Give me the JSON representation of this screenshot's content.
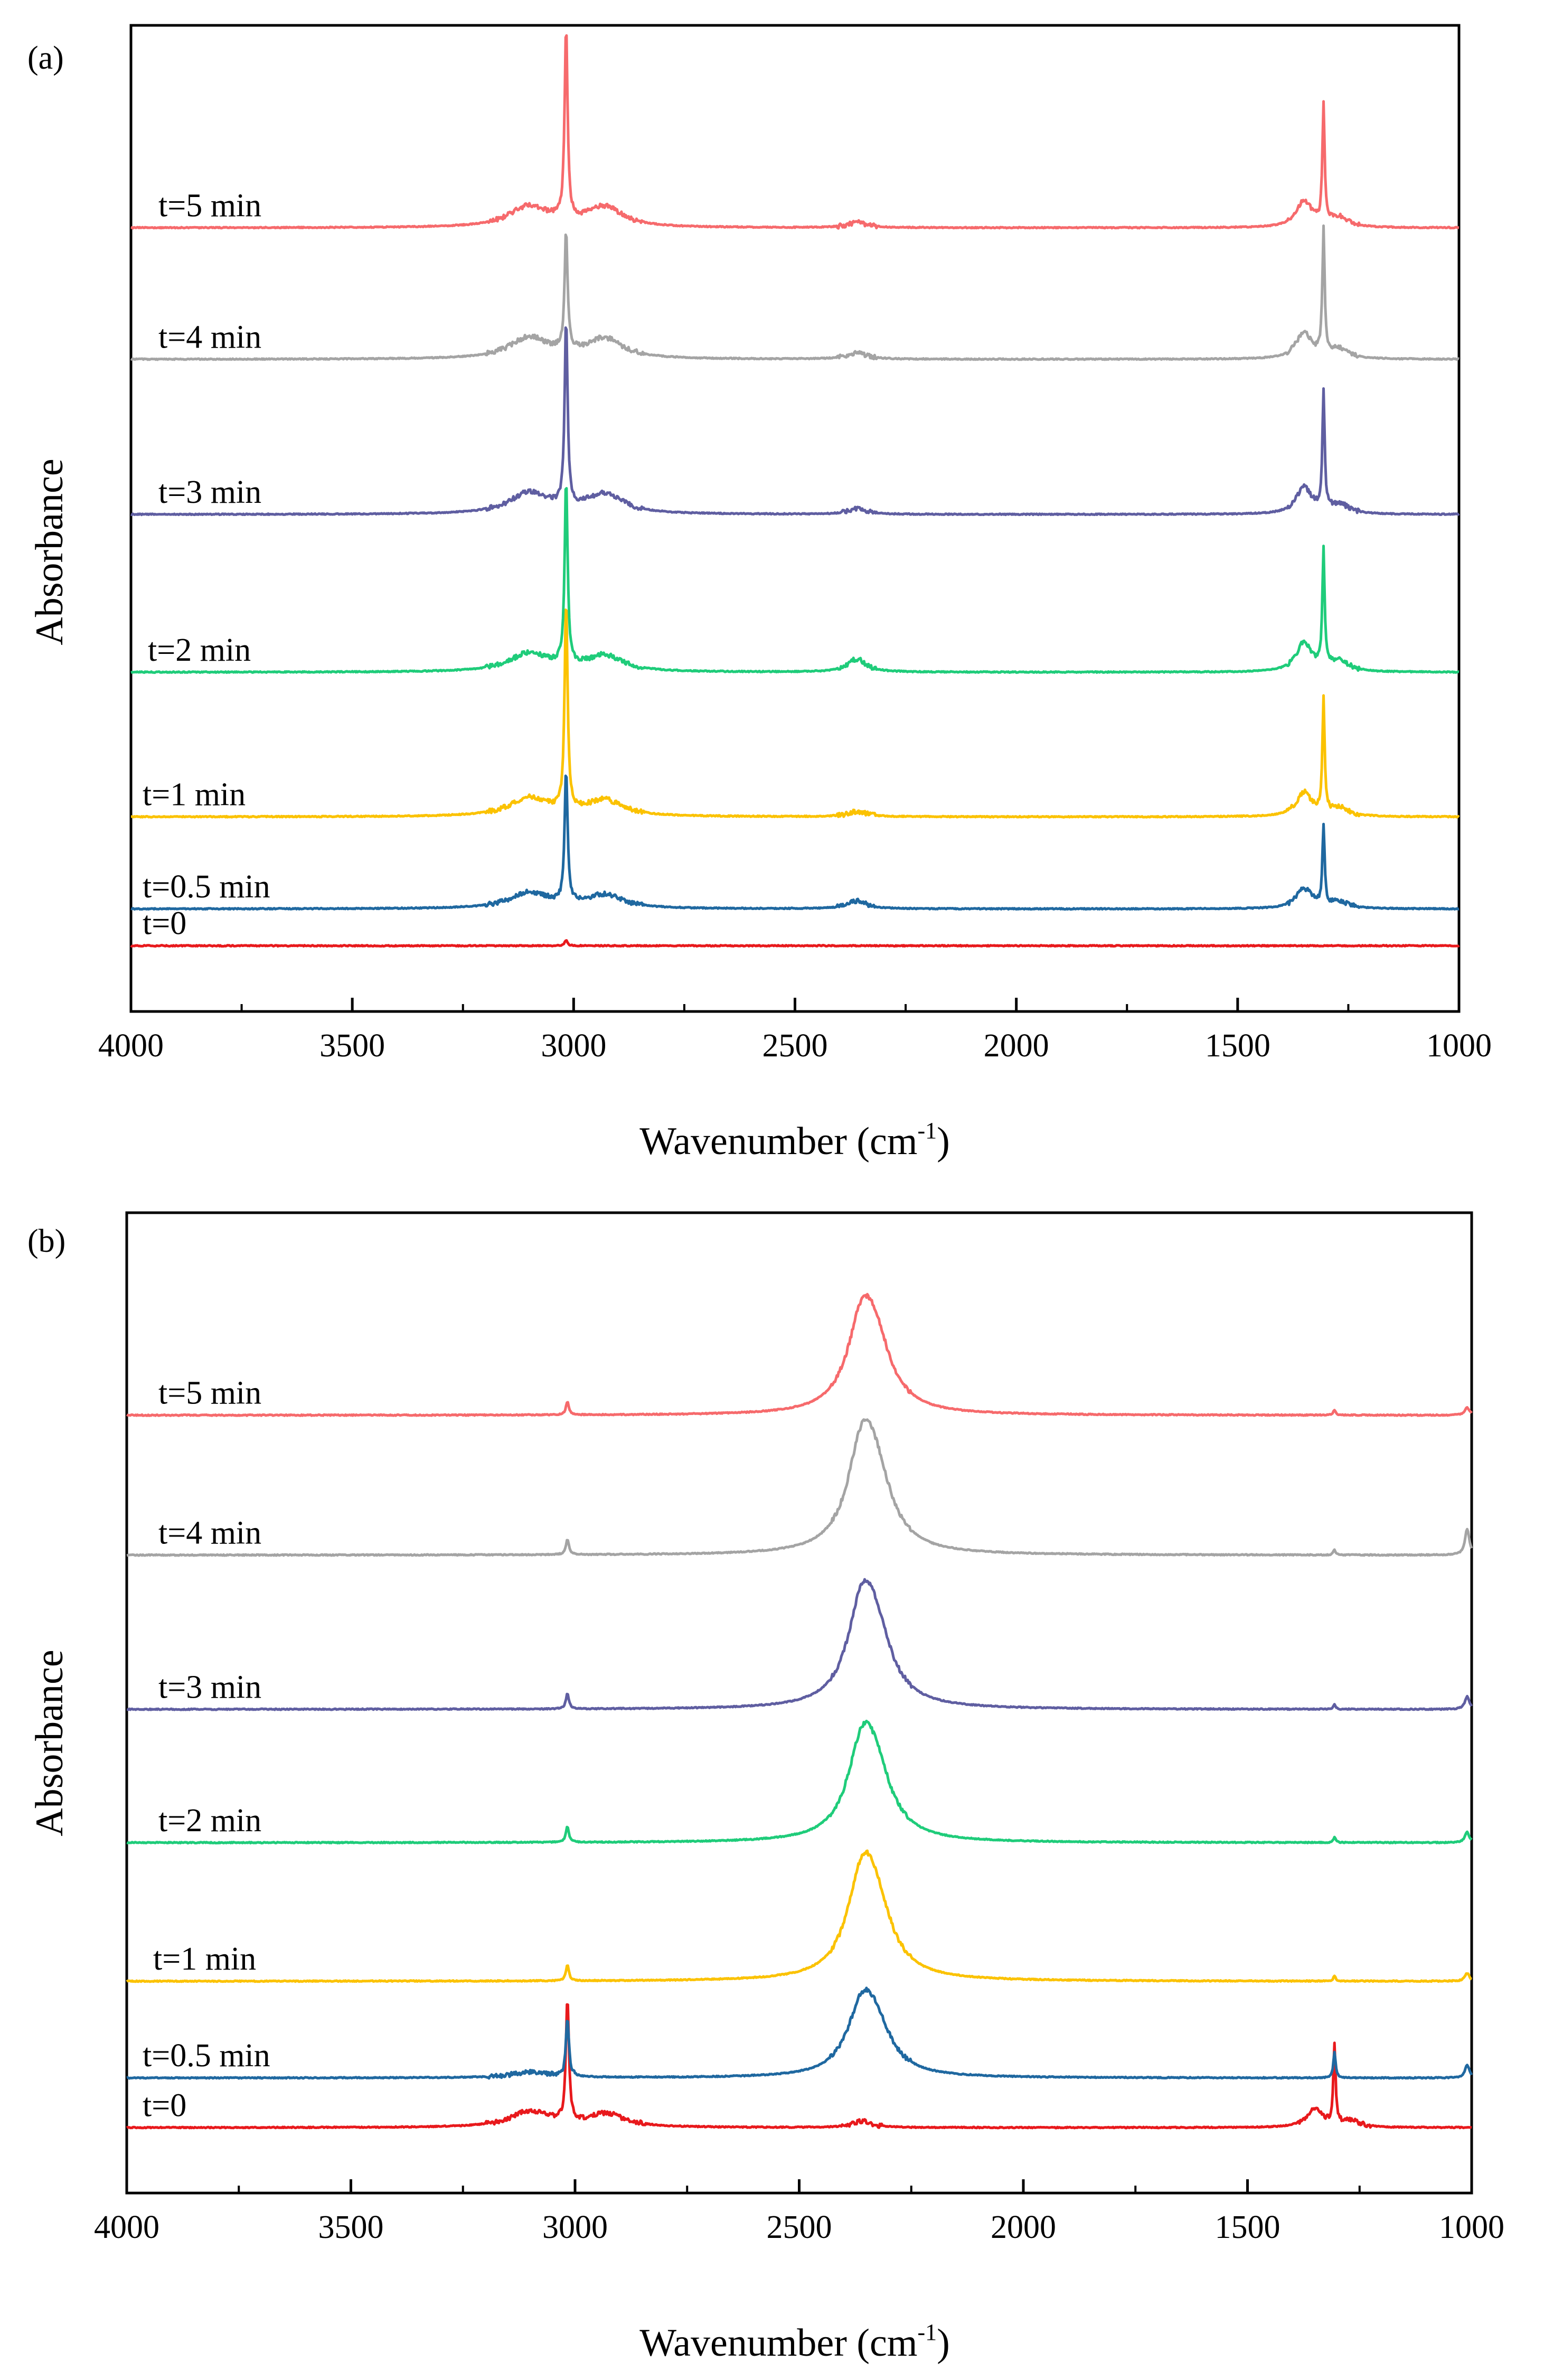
{
  "chart_data": [
    {
      "type": "line",
      "panel_label": "(a)",
      "xlabel": "Wavenumber (cm",
      "xlabel_sup": "-1",
      "xlabel_suffix": ")",
      "ylabel": "Absorbance",
      "xlim": [
        4000,
        1000
      ],
      "x_reversed": true,
      "xticks": [
        4000,
        3500,
        3000,
        2500,
        2000,
        1500,
        1000
      ],
      "y_ticks_shown": false,
      "ylim": [
        -0.5,
        7.0
      ],
      "series": [
        {
          "name": "t=0",
          "color": "#e8191c",
          "offset": 0.0,
          "peaks": [
            {
              "x": 3017,
              "h": 0.04,
              "w": 4
            }
          ]
        },
        {
          "name": "t=0.5 min",
          "color": "#1f68a0",
          "offset": 0.28,
          "peaks": [
            {
              "x": 3100,
              "h": 0.12,
              "w": 55
            },
            {
              "x": 2930,
              "h": 0.1,
              "w": 50
            },
            {
              "x": 3017,
              "h": 1.0,
              "w": 4
            },
            {
              "x": 2360,
              "h": 0.06,
              "w": 25
            },
            {
              "x": 1350,
              "h": 0.15,
              "w": 22
            },
            {
              "x": 1306,
              "h": 0.6,
              "w": 3
            },
            {
              "x": 1270,
              "h": 0.05,
              "w": 25
            }
          ]
        },
        {
          "name": "t=1 min",
          "color": "#fbc200",
          "offset": 0.98,
          "peaks": [
            {
              "x": 3100,
              "h": 0.14,
              "w": 55
            },
            {
              "x": 2930,
              "h": 0.12,
              "w": 50
            },
            {
              "x": 3017,
              "h": 1.6,
              "w": 4
            },
            {
              "x": 2360,
              "h": 0.04,
              "w": 25
            },
            {
              "x": 1350,
              "h": 0.18,
              "w": 22
            },
            {
              "x": 1306,
              "h": 0.85,
              "w": 3
            },
            {
              "x": 1270,
              "h": 0.06,
              "w": 25
            }
          ]
        },
        {
          "name": "t=2 min",
          "color": "#1fcc7a",
          "offset": 2.08,
          "peaks": [
            {
              "x": 3100,
              "h": 0.14,
              "w": 55
            },
            {
              "x": 2930,
              "h": 0.12,
              "w": 50
            },
            {
              "x": 3017,
              "h": 1.4,
              "w": 4
            },
            {
              "x": 2360,
              "h": 0.1,
              "w": 25
            },
            {
              "x": 1350,
              "h": 0.22,
              "w": 22
            },
            {
              "x": 1306,
              "h": 0.9,
              "w": 3
            },
            {
              "x": 1270,
              "h": 0.08,
              "w": 25
            }
          ]
        },
        {
          "name": "t=3 min",
          "color": "#5f5ea1",
          "offset": 3.28,
          "peaks": [
            {
              "x": 3100,
              "h": 0.16,
              "w": 55
            },
            {
              "x": 2930,
              "h": 0.15,
              "w": 50
            },
            {
              "x": 3017,
              "h": 1.4,
              "w": 4
            },
            {
              "x": 2360,
              "h": 0.04,
              "w": 25
            },
            {
              "x": 1350,
              "h": 0.2,
              "w": 22
            },
            {
              "x": 1306,
              "h": 0.9,
              "w": 3
            },
            {
              "x": 1270,
              "h": 0.07,
              "w": 25
            }
          ]
        },
        {
          "name": "t=4 min",
          "color": "#a4a4a4",
          "offset": 4.46,
          "peaks": [
            {
              "x": 3100,
              "h": 0.16,
              "w": 55
            },
            {
              "x": 2930,
              "h": 0.15,
              "w": 50
            },
            {
              "x": 3017,
              "h": 0.9,
              "w": 4
            },
            {
              "x": 2360,
              "h": 0.05,
              "w": 25
            },
            {
              "x": 1350,
              "h": 0.2,
              "w": 22
            },
            {
              "x": 1306,
              "h": 0.95,
              "w": 3
            },
            {
              "x": 1270,
              "h": 0.07,
              "w": 25
            }
          ]
        },
        {
          "name": "t=5 min",
          "color": "#f66a6c",
          "offset": 5.46,
          "peaks": [
            {
              "x": 3100,
              "h": 0.16,
              "w": 55
            },
            {
              "x": 2930,
              "h": 0.15,
              "w": 50
            },
            {
              "x": 3017,
              "h": 1.45,
              "w": 4
            },
            {
              "x": 2360,
              "h": 0.04,
              "w": 25
            },
            {
              "x": 1350,
              "h": 0.2,
              "w": 22
            },
            {
              "x": 1306,
              "h": 0.9,
              "w": 3
            },
            {
              "x": 1270,
              "h": 0.07,
              "w": 25
            }
          ]
        }
      ]
    },
    {
      "type": "line",
      "panel_label": "(b)",
      "xlabel": "Wavenumber (cm",
      "xlabel_sup": "-1",
      "xlabel_suffix": ")",
      "ylabel": "Absorbance",
      "xlim": [
        4000,
        1000
      ],
      "x_reversed": true,
      "xticks": [
        4000,
        3500,
        3000,
        2500,
        2000,
        1500,
        1000
      ],
      "y_ticks_shown": false,
      "ylim": [
        -0.5,
        7.0
      ],
      "series": [
        {
          "name": "t=0",
          "color": "#e8191c",
          "offset": 0.0,
          "peaks": [
            {
              "x": 3100,
              "h": 0.12,
              "w": 55
            },
            {
              "x": 2930,
              "h": 0.1,
              "w": 50
            },
            {
              "x": 3017,
              "h": 0.95,
              "w": 4
            },
            {
              "x": 2360,
              "h": 0.05,
              "w": 25
            },
            {
              "x": 1350,
              "h": 0.14,
              "w": 22
            },
            {
              "x": 1306,
              "h": 0.6,
              "w": 3
            },
            {
              "x": 1270,
              "h": 0.05,
              "w": 25
            }
          ]
        },
        {
          "name": "t=0.5 min",
          "color": "#1f68a0",
          "offset": 0.38,
          "peaks": [
            {
              "x": 3100,
              "h": 0.04,
              "w": 55
            },
            {
              "x": 3017,
              "h": 0.45,
              "w": 4
            },
            {
              "x": 2360,
              "h": 0.45,
              "w": 40
            },
            {
              "x": 2330,
              "h": 0.3,
              "w": 45
            },
            {
              "x": 1306,
              "h": 0.2,
              "w": 3
            },
            {
              "x": 1010,
              "h": 0.1,
              "w": 6
            }
          ]
        },
        {
          "name": "t=1 min",
          "color": "#fbc200",
          "offset": 1.12,
          "peaks": [
            {
              "x": 3017,
              "h": 0.12,
              "w": 4
            },
            {
              "x": 2360,
              "h": 0.65,
              "w": 40
            },
            {
              "x": 2330,
              "h": 0.45,
              "w": 45
            },
            {
              "x": 1306,
              "h": 0.04,
              "w": 3
            },
            {
              "x": 1010,
              "h": 0.06,
              "w": 6
            }
          ]
        },
        {
          "name": "t=2 min",
          "color": "#1fcc7a",
          "offset": 2.18,
          "peaks": [
            {
              "x": 3017,
              "h": 0.12,
              "w": 4
            },
            {
              "x": 2360,
              "h": 0.6,
              "w": 40
            },
            {
              "x": 2330,
              "h": 0.42,
              "w": 45
            },
            {
              "x": 1306,
              "h": 0.04,
              "w": 3
            },
            {
              "x": 1010,
              "h": 0.08,
              "w": 6
            }
          ]
        },
        {
          "name": "t=3 min",
          "color": "#5f5ea1",
          "offset": 3.2,
          "peaks": [
            {
              "x": 3017,
              "h": 0.12,
              "w": 4
            },
            {
              "x": 2360,
              "h": 0.65,
              "w": 40
            },
            {
              "x": 2330,
              "h": 0.45,
              "w": 45
            },
            {
              "x": 1306,
              "h": 0.04,
              "w": 3
            },
            {
              "x": 1010,
              "h": 0.1,
              "w": 6
            }
          ]
        },
        {
          "name": "t=4 min",
          "color": "#a4a4a4",
          "offset": 4.38,
          "peaks": [
            {
              "x": 3017,
              "h": 0.12,
              "w": 4
            },
            {
              "x": 2360,
              "h": 0.68,
              "w": 40
            },
            {
              "x": 2330,
              "h": 0.47,
              "w": 45
            },
            {
              "x": 1306,
              "h": 0.04,
              "w": 3
            },
            {
              "x": 1010,
              "h": 0.2,
              "w": 6
            }
          ]
        },
        {
          "name": "t=5 min",
          "color": "#f66a6c",
          "offset": 5.45,
          "peaks": [
            {
              "x": 3017,
              "h": 0.1,
              "w": 4
            },
            {
              "x": 2360,
              "h": 0.6,
              "w": 40
            },
            {
              "x": 2330,
              "h": 0.42,
              "w": 45
            },
            {
              "x": 1306,
              "h": 0.04,
              "w": 3
            },
            {
              "x": 1010,
              "h": 0.06,
              "w": 6
            }
          ]
        }
      ]
    }
  ]
}
